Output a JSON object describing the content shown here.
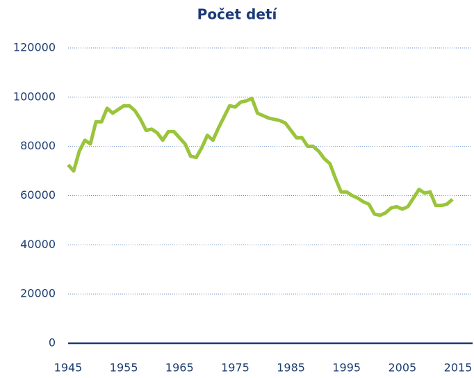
{
  "chart_data": {
    "type": "line",
    "title": "Počet detí",
    "x": [
      1945,
      1946,
      1947,
      1948,
      1949,
      1950,
      1951,
      1952,
      1953,
      1954,
      1955,
      1956,
      1957,
      1958,
      1959,
      1960,
      1961,
      1962,
      1963,
      1964,
      1965,
      1966,
      1967,
      1968,
      1969,
      1970,
      1971,
      1972,
      1973,
      1974,
      1975,
      1976,
      1977,
      1978,
      1979,
      1980,
      1981,
      1982,
      1983,
      1984,
      1985,
      1986,
      1987,
      1988,
      1989,
      1990,
      1991,
      1992,
      1993,
      1994,
      1995,
      1996,
      1997,
      1998,
      1999,
      2000,
      2001,
      2002,
      2003,
      2004,
      2005,
      2006,
      2007,
      2008,
      2009,
      2010,
      2011,
      2012,
      2013,
      2014
    ],
    "series": [
      {
        "color": "#9ac43c",
        "values": [
          72500,
          70000,
          78000,
          82500,
          81000,
          90000,
          90000,
          95500,
          93500,
          95000,
          96500,
          96500,
          94500,
          91000,
          86500,
          87000,
          85500,
          82500,
          86000,
          86000,
          83500,
          81000,
          76000,
          75500,
          79500,
          84500,
          82500,
          87500,
          92000,
          96500,
          96000,
          98000,
          98500,
          99500,
          93500,
          92500,
          91500,
          91000,
          90500,
          89500,
          86500,
          83500,
          83500,
          80000,
          80000,
          78000,
          75000,
          73000,
          67000,
          61500,
          61500,
          60000,
          59000,
          57500,
          56500,
          52500,
          52000,
          53000,
          55000,
          55500,
          54500,
          55500,
          59000,
          62500,
          61000,
          61500,
          56000,
          56000,
          56500,
          58500
        ]
      }
    ],
    "xlim": [
      1945,
      2015
    ],
    "xticks": [
      1945,
      1955,
      1965,
      1975,
      1985,
      1995,
      2005,
      2015
    ],
    "ylim": [
      0,
      120000
    ],
    "yticks": [
      0,
      20000,
      40000,
      60000,
      80000,
      100000,
      120000
    ],
    "grid": true
  }
}
